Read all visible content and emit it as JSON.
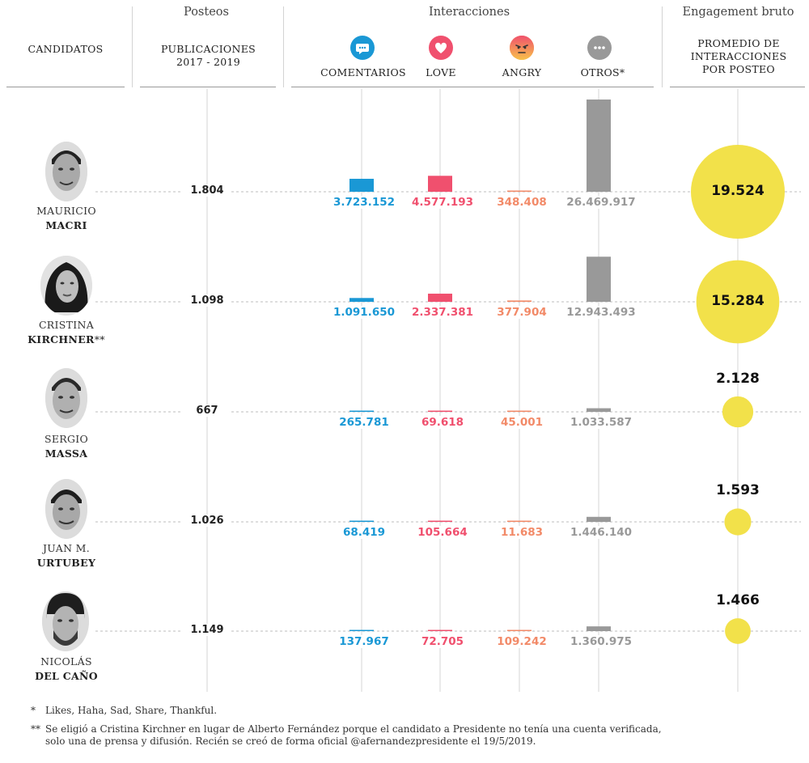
{
  "header": {
    "groups": {
      "posteos": "Posteos",
      "interacciones": "Interacciones",
      "engagement": "Engagement bruto"
    },
    "columns": {
      "candidatos": "CANDIDATOS",
      "publicaciones_line1": "PUBLICACIONES",
      "publicaciones_line2": "2017 - 2019",
      "comentarios": "COMENTARIOS",
      "love": "LOVE",
      "angry": "ANGRY",
      "otros": "OTROS*",
      "promedio_line1": "PROMEDIO DE",
      "promedio_line2": "INTERACCIONES",
      "promedio_line3": "POR POSTEO"
    }
  },
  "icons": {
    "comentarios": "speech-bubble-icon",
    "love": "heart-icon",
    "angry": "angry-face-icon",
    "otros": "ellipsis-icon"
  },
  "colors": {
    "comentarios": "#1a98d5",
    "love": "#f0506e",
    "angry": "#f28a68",
    "otros": "#999999",
    "engagement": "#f2e14a"
  },
  "candidates": [
    {
      "first": "MAURICIO",
      "last": "MACRI",
      "suffix": ""
    },
    {
      "first": "CRISTINA",
      "last": "KIRCHNER",
      "suffix": "**"
    },
    {
      "first": "SERGIO",
      "last": "MASSA",
      "suffix": ""
    },
    {
      "first": "JUAN M.",
      "last": "URTUBEY",
      "suffix": ""
    },
    {
      "first": "NICOLÁS",
      "last": "DEL CAÑO",
      "suffix": ""
    }
  ],
  "chart_data": {
    "type": "bar",
    "categories": [
      "MAURICIO MACRI",
      "CRISTINA KIRCHNER",
      "SERGIO MASSA",
      "JUAN M. URTUBEY",
      "NICOLÁS DEL CAÑO"
    ],
    "publicaciones": [
      1804,
      1098,
      667,
      1026,
      1149
    ],
    "publicaciones_labels": [
      "1.804",
      "1.098",
      "667",
      "1.026",
      "1.149"
    ],
    "series": [
      {
        "name": "COMENTARIOS",
        "values": [
          3723152,
          1091650,
          265781,
          68419,
          137967
        ],
        "labels": [
          "3.723.152",
          "1.091.650",
          "265.781",
          "68.419",
          "137.967"
        ]
      },
      {
        "name": "LOVE",
        "values": [
          4577193,
          2337381,
          69618,
          105664,
          72705
        ],
        "labels": [
          "4.577.193",
          "2.337.381",
          "69.618",
          "105.664",
          "72.705"
        ]
      },
      {
        "name": "ANGRY",
        "values": [
          348408,
          377904,
          45001,
          11683,
          109242
        ],
        "labels": [
          "348.408",
          "377.904",
          "45.001",
          "11.683",
          "109.242"
        ]
      },
      {
        "name": "OTROS*",
        "values": [
          26469917,
          12943493,
          1033587,
          1446140,
          1360975
        ],
        "labels": [
          "26.469.917",
          "12.943.493",
          "1.033.587",
          "1.446.140",
          "1.360.975"
        ]
      }
    ],
    "engagement": {
      "name": "PROMEDIO DE INTERACCIONES POR POSTEO",
      "values": [
        19524,
        15284,
        2128,
        1593,
        1466
      ],
      "labels": [
        "19.524",
        "15.284",
        "2.128",
        "1.593",
        "1.466"
      ]
    }
  },
  "footnotes": {
    "n1_mark": "*",
    "n1_text": "Likes, Haha, Sad, Share, Thankful.",
    "n2_mark": "**",
    "n2_line1": "Se eligió a Cristina Kirchner en lugar de Alberto Fernández porque el candidato a Presidente no tenía una cuenta verificada,",
    "n2_line2": "solo una de prensa y difusión. Recién se creó de forma oficial @afernandezpresidente el 19/5/2019."
  }
}
